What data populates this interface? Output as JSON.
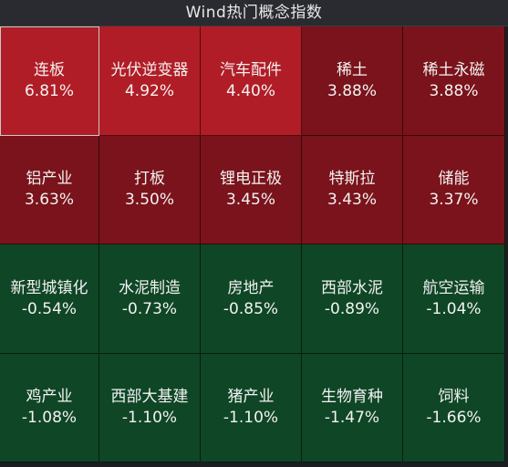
{
  "title": "Wind热门概念指数",
  "colors": {
    "strong_up": "#b11d26",
    "mild_up": "#7a131b",
    "down": "#0f4626",
    "background": "#1c1d21"
  },
  "tiles": [
    {
      "name": "连板",
      "pct": "6.81%",
      "tone": "strong_up",
      "selected": true
    },
    {
      "name": "光伏逆变器",
      "pct": "4.92%",
      "tone": "strong_up"
    },
    {
      "name": "汽车配件",
      "pct": "4.40%",
      "tone": "strong_up"
    },
    {
      "name": "稀土",
      "pct": "3.88%",
      "tone": "mild_up"
    },
    {
      "name": "稀土永磁",
      "pct": "3.88%",
      "tone": "mild_up"
    },
    {
      "name": "铝产业",
      "pct": "3.63%",
      "tone": "mild_up"
    },
    {
      "name": "打板",
      "pct": "3.50%",
      "tone": "mild_up"
    },
    {
      "name": "锂电正极",
      "pct": "3.45%",
      "tone": "mild_up"
    },
    {
      "name": "特斯拉",
      "pct": "3.43%",
      "tone": "mild_up"
    },
    {
      "name": "储能",
      "pct": "3.37%",
      "tone": "mild_up"
    },
    {
      "name": "新型城镇化",
      "pct": "-0.54%",
      "tone": "down"
    },
    {
      "name": "水泥制造",
      "pct": "-0.73%",
      "tone": "down"
    },
    {
      "name": "房地产",
      "pct": "-0.85%",
      "tone": "down"
    },
    {
      "name": "西部水泥",
      "pct": "-0.89%",
      "tone": "down"
    },
    {
      "name": "航空运输",
      "pct": "-1.04%",
      "tone": "down"
    },
    {
      "name": "鸡产业",
      "pct": "-1.08%",
      "tone": "down"
    },
    {
      "name": "西部大基建",
      "pct": "-1.10%",
      "tone": "down"
    },
    {
      "name": "猪产业",
      "pct": "-1.10%",
      "tone": "down"
    },
    {
      "name": "生物育种",
      "pct": "-1.47%",
      "tone": "down"
    },
    {
      "name": "饲料",
      "pct": "-1.66%",
      "tone": "down"
    }
  ]
}
